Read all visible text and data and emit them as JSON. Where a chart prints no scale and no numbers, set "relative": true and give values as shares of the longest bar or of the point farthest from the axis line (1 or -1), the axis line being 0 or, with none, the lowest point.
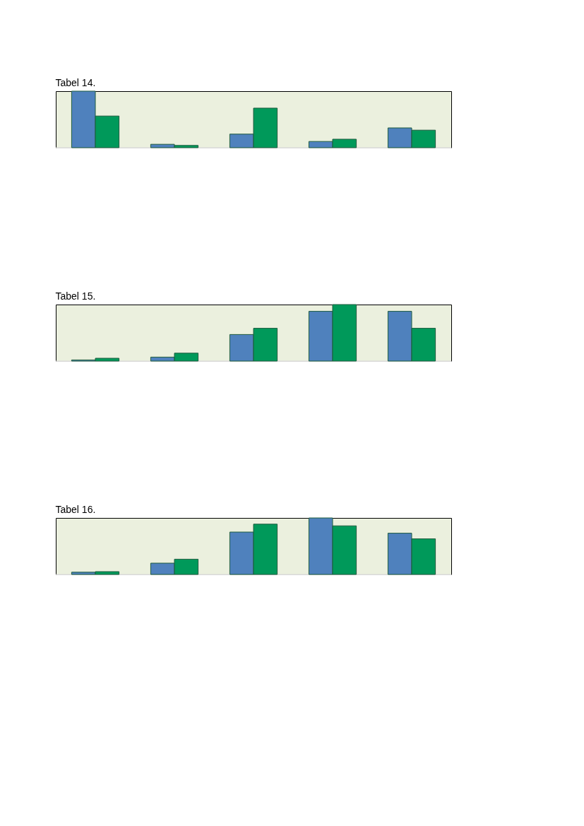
{
  "chart_data": [
    {
      "type": "bar",
      "title": "Tabel 14.",
      "relative": true,
      "grid": false,
      "categories": [
        null,
        null,
        null,
        null,
        null
      ],
      "series": [
        {
          "color": "#4f81bd",
          "values": [
            1,
            0.06,
            0.24,
            0.11,
            0.35
          ]
        },
        {
          "color": "#00995a",
          "values": [
            0.56,
            0.04,
            0.7,
            0.15,
            0.31
          ]
        }
      ]
    },
    {
      "type": "bar",
      "title": "Tabel 15.",
      "relative": true,
      "grid": false,
      "categories": [
        null,
        null,
        null,
        null,
        null
      ],
      "series": [
        {
          "color": "#4f81bd",
          "values": [
            0.02,
            0.07,
            0.47,
            0.88,
            0.88
          ]
        },
        {
          "color": "#00995a",
          "values": [
            0.05,
            0.14,
            0.58,
            1,
            0.58
          ]
        }
      ]
    },
    {
      "type": "bar",
      "title": "Tabel 16.",
      "relative": true,
      "grid": false,
      "categories": [
        null,
        null,
        null,
        null,
        null
      ],
      "series": [
        {
          "color": "#4f81bd",
          "values": [
            0.04,
            0.2,
            0.75,
            1,
            0.73
          ]
        },
        {
          "color": "#00995a",
          "values": [
            0.05,
            0.27,
            0.89,
            0.86,
            0.63
          ]
        }
      ]
    }
  ]
}
